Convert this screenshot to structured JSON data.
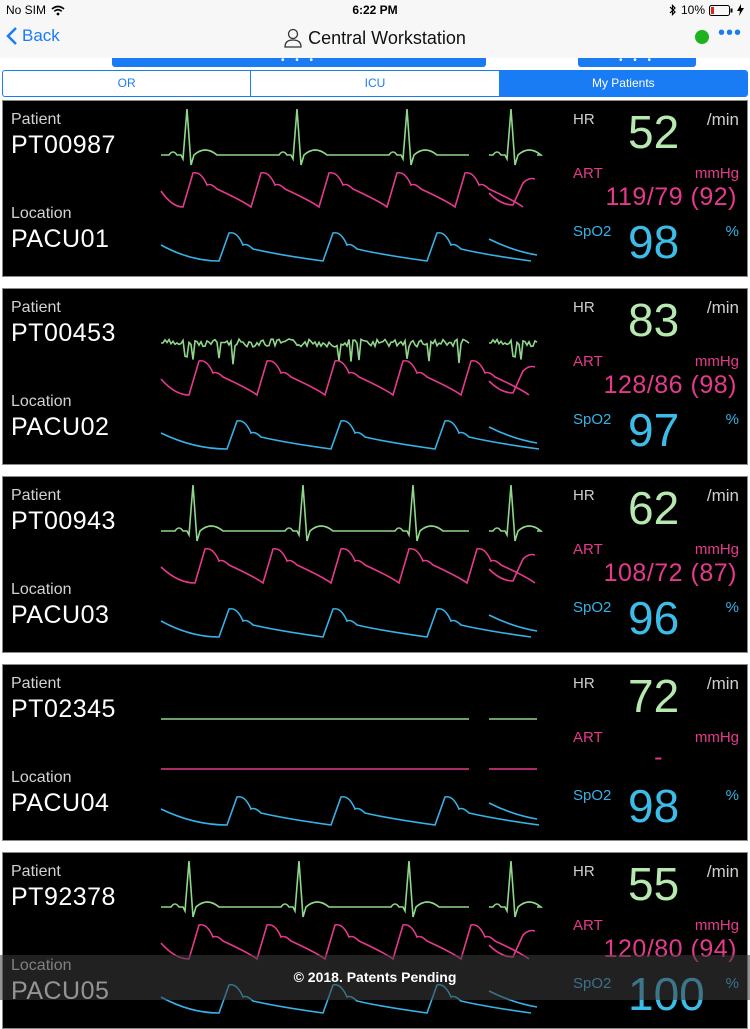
{
  "status": {
    "carrier": "No SIM",
    "time": "6:22 PM",
    "battery": "10%"
  },
  "nav": {
    "back_label": "Back",
    "title": "Central Workstation",
    "connection_color": "#1db31d"
  },
  "tabs": [
    {
      "label": "OR",
      "active": false
    },
    {
      "label": "ICU",
      "active": false
    },
    {
      "label": "My Patients",
      "active": true
    }
  ],
  "labels": {
    "patient": "Patient",
    "location": "Location",
    "hr": "HR",
    "hr_unit": "/min",
    "art": "ART",
    "art_unit": "mmHg",
    "spo2": "SpO2",
    "spo2_unit": "%"
  },
  "patients": [
    {
      "id": "PT00987",
      "location": "PACU01",
      "hr": "52",
      "art": "119/79 (92)",
      "spo2": "98",
      "ecg": "normal",
      "art_wave": true
    },
    {
      "id": "PT00453",
      "location": "PACU02",
      "hr": "83",
      "art": "128/86 (98)",
      "spo2": "97",
      "ecg": "noisy",
      "art_wave": true
    },
    {
      "id": "PT00943",
      "location": "PACU03",
      "hr": "62",
      "art": "108/72 (87)",
      "spo2": "96",
      "ecg": "normal",
      "art_wave": true
    },
    {
      "id": "PT02345",
      "location": "PACU04",
      "hr": "72",
      "art": "-",
      "spo2": "98",
      "ecg": "flat",
      "art_wave": false
    },
    {
      "id": "PT92378",
      "location": "PACU05",
      "hr": "55",
      "art": "120/80 (94)",
      "spo2": "100",
      "ecg": "normal",
      "art_wave": true
    }
  ],
  "footer": {
    "text": "© 2018. Patents Pending"
  }
}
